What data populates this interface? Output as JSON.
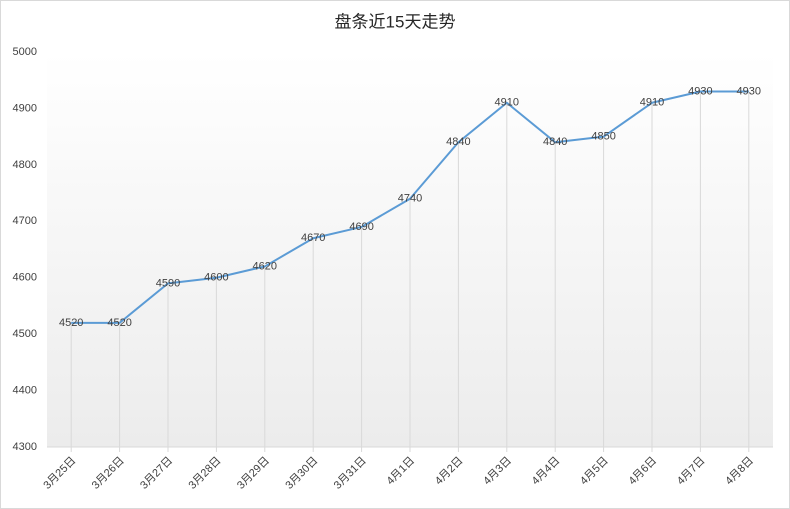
{
  "chart_data": {
    "type": "line",
    "title": "盘条近15天走势",
    "categories": [
      "3月25日",
      "3月26日",
      "3月27日",
      "3月28日",
      "3月29日",
      "3月30日",
      "3月31日",
      "4月1日",
      "4月2日",
      "4月3日",
      "4月4日",
      "4月5日",
      "4月6日",
      "4月7日",
      "4月8日"
    ],
    "values": [
      4520,
      4520,
      4590,
      4600,
      4620,
      4670,
      4690,
      4740,
      4840,
      4910,
      4840,
      4850,
      4910,
      4930,
      4930
    ],
    "color": "#5b9bd5",
    "ylim": [
      4300,
      5000
    ],
    "yticks": [
      4300,
      4400,
      4500,
      4600,
      4700,
      4800,
      4900,
      5000
    ],
    "data_labels": true,
    "drop_lines": true
  }
}
